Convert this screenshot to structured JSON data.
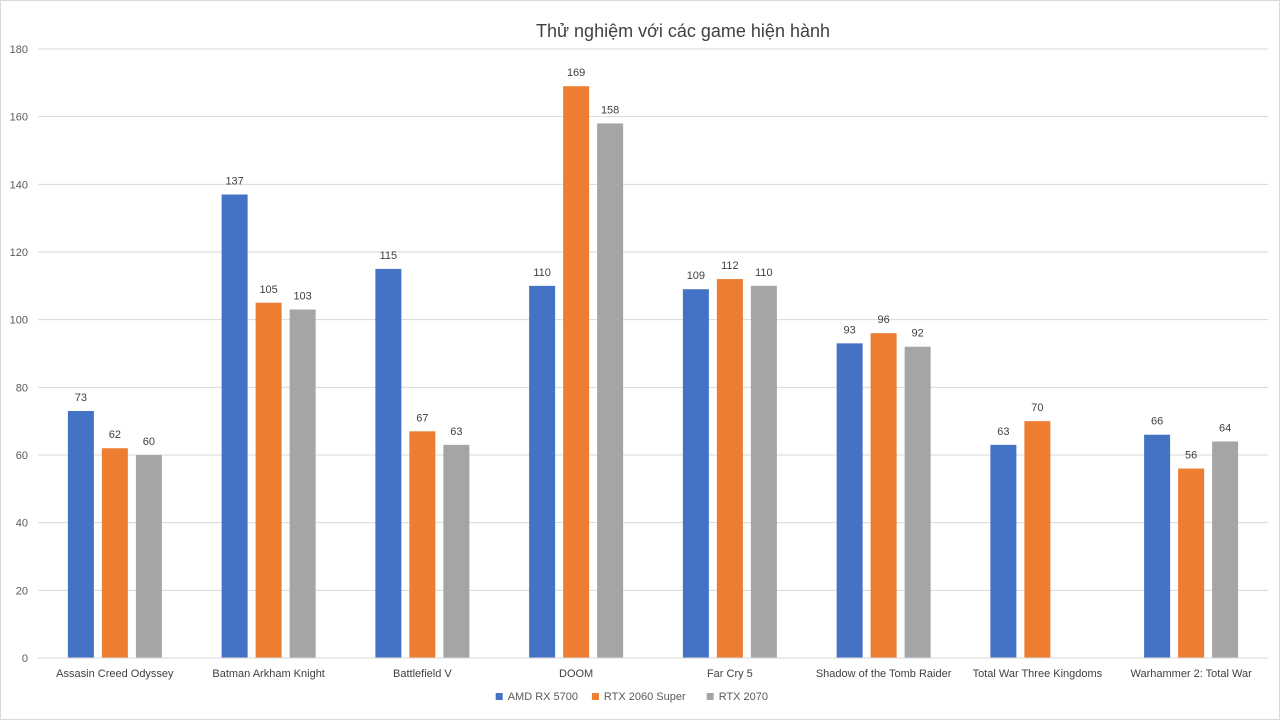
{
  "chart_data": {
    "type": "bar",
    "title": "Thử nghiệm với các game hiện hành",
    "xlabel": "",
    "ylabel": "",
    "ylim": [
      0,
      180
    ],
    "yticks": [
      0,
      20,
      40,
      60,
      80,
      100,
      120,
      140,
      160,
      180
    ],
    "grid": true,
    "legend_position": "bottom",
    "categories": [
      "Assasin Creed Odyssey",
      "Batman Arkham Knight",
      "Battlefield V",
      "DOOM",
      "Far Cry 5",
      "Shadow of the Tomb Raider",
      "Total War Three Kingdoms",
      "Warhammer 2: Total War"
    ],
    "series": [
      {
        "name": "AMD RX 5700",
        "color": "#4472c4",
        "values": [
          73,
          137,
          115,
          110,
          109,
          93,
          63,
          66
        ]
      },
      {
        "name": "RTX 2060 Super",
        "color": "#ed7d31",
        "values": [
          62,
          105,
          67,
          169,
          112,
          96,
          70,
          56
        ]
      },
      {
        "name": "RTX 2070",
        "color": "#a5a5a5",
        "values": [
          60,
          103,
          63,
          158,
          110,
          92,
          null,
          64
        ]
      }
    ]
  }
}
